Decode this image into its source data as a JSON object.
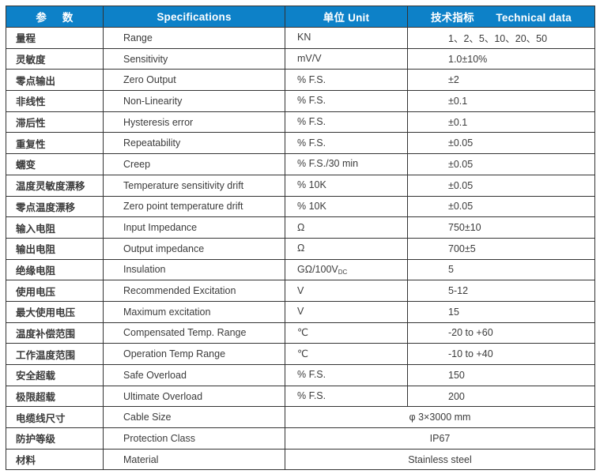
{
  "header": {
    "col1": "参     数",
    "col2": "Specifications",
    "col3": "单位 Unit",
    "col4": "技术指标       Technical data"
  },
  "colors": {
    "header_bg": "#0d81c8",
    "header_text": "#ffffff",
    "border": "#333333",
    "body_text": "#3b3b3b"
  },
  "rows": [
    {
      "cn": "量程",
      "en": "Range",
      "unit": "KN",
      "value": "1、2、5、10、20、50"
    },
    {
      "cn": "灵敏度",
      "en": "Sensitivity",
      "unit": "mV/V",
      "value": "1.0±10%"
    },
    {
      "cn": "零点输出",
      "en": "Zero Output",
      "unit": "% F.S.",
      "value": "±2"
    },
    {
      "cn": "非线性",
      "en": "Non-Linearity",
      "unit": "% F.S.",
      "value": "±0.1"
    },
    {
      "cn": "滞后性",
      "en": "Hysteresis error",
      "unit": "% F.S.",
      "value": "±0.1"
    },
    {
      "cn": "重复性",
      "en": "Repeatability",
      "unit": "% F.S.",
      "value": "±0.05"
    },
    {
      "cn": "蠕变",
      "en": "Creep",
      "unit": "% F.S./30 min",
      "value": "±0.05"
    },
    {
      "cn": "温度灵敏度漂移",
      "en": "Temperature sensitivity drift",
      "unit": "% 10K",
      "value": "±0.05"
    },
    {
      "cn": "零点温度漂移",
      "en": "Zero point temperature drift",
      "unit": "% 10K",
      "value": "±0.05"
    },
    {
      "cn": "输入电阻",
      "en": "Input Impedance",
      "unit": "Ω",
      "value": "750±10"
    },
    {
      "cn": "输出电阻",
      "en": "Output impedance",
      "unit": "Ω",
      "value": "700±5"
    },
    {
      "cn": "绝缘电阻",
      "en": "Insulation",
      "unit": "GΩ/100V",
      "unit_sub": "DC",
      "value": "5"
    },
    {
      "cn": "使用电压",
      "en": "Recommended Excitation",
      "unit": "V",
      "value": "5-12"
    },
    {
      "cn": "最大使用电压",
      "en": "Maximum excitation",
      "unit": "V",
      "value": "15"
    },
    {
      "cn": "温度补偿范围",
      "en": "Compensated Temp. Range",
      "unit": "℃",
      "value": "-20 to +60"
    },
    {
      "cn": "工作温度范围",
      "en": "Operation Temp Range",
      "unit": "℃",
      "value": "-10 to +40"
    },
    {
      "cn": "安全超载",
      "en": "Safe Overload",
      "unit": "% F.S.",
      "value": "150"
    },
    {
      "cn": "极限超载",
      "en": "Ultimate Overload",
      "unit": "% F.S.",
      "value": "200"
    },
    {
      "cn": "电缆线尺寸",
      "en": "Cable Size",
      "merged": "φ 3×3000 mm"
    },
    {
      "cn": "防护等级",
      "en": "Protection Class",
      "merged": "IP67"
    },
    {
      "cn": "材料",
      "en": "Material",
      "merged": "Stainless steel"
    }
  ]
}
